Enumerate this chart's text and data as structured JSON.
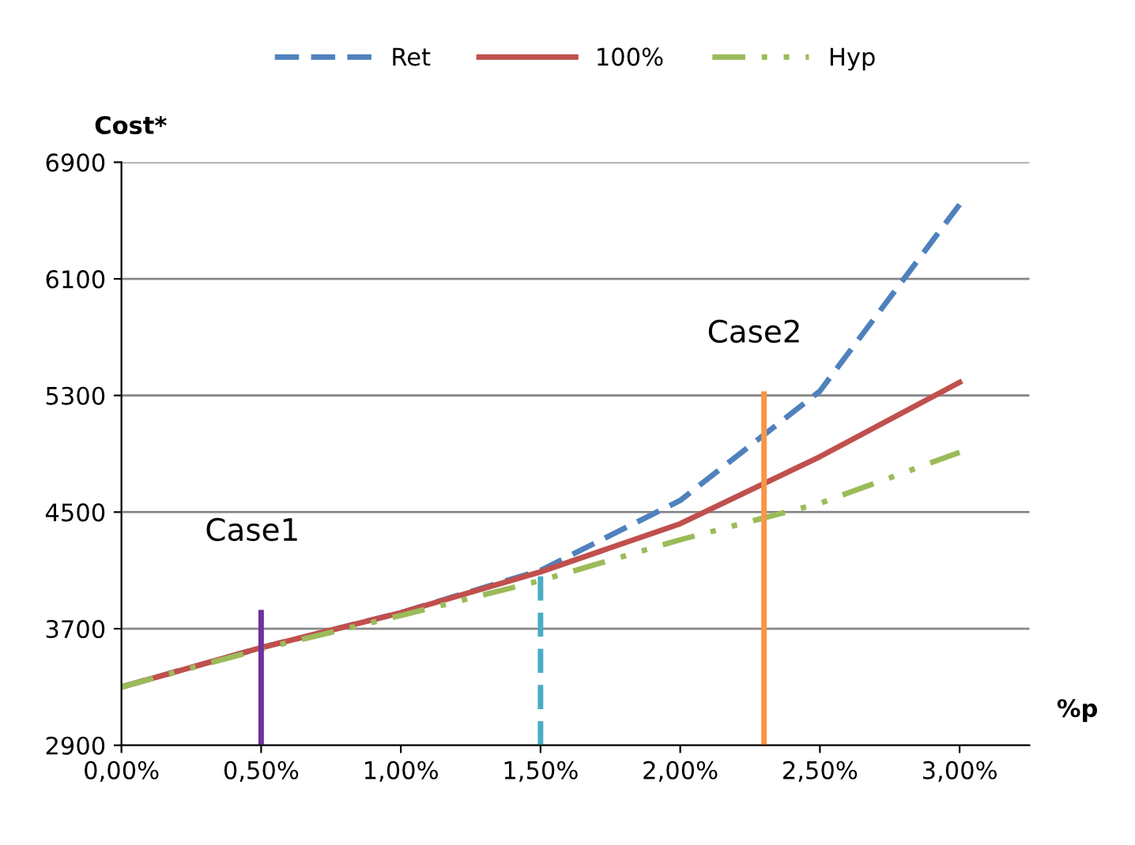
{
  "chart_data": {
    "type": "line",
    "ylabel": "Cost*",
    "xlabel": "%p",
    "x": [
      0,
      0.5,
      1.0,
      1.5,
      2.0,
      2.5,
      3.0
    ],
    "series": [
      {
        "name": "Ret",
        "color": "#4f81bd",
        "line_style": "dashed",
        "values": [
          3300,
          3570,
          3810,
          4100,
          4580,
          5330,
          6610
        ]
      },
      {
        "name": "100%",
        "color": "#c0504d",
        "line_style": "solid",
        "values": [
          3300,
          3570,
          3810,
          4090,
          4420,
          4880,
          5390
        ]
      },
      {
        "name": "Hyp",
        "color": "#9bbb59",
        "line_style": "dashdot",
        "values": [
          3300,
          3560,
          3790,
          4030,
          4310,
          4560,
          4910
        ]
      },
      {
        "color": "#7030a0",
        "line_style": "solid",
        "x": [
          0.5,
          0.5
        ],
        "values": [
          2900,
          3810
        ]
      },
      {
        "color": "#4bacc6",
        "line_style": "dashed",
        "x": [
          1.5,
          1.5
        ],
        "values": [
          2900,
          4110
        ]
      },
      {
        "color": "#f79646",
        "line_style": "solid",
        "x": [
          2.3,
          2.3
        ],
        "values": [
          2900,
          5310
        ]
      }
    ],
    "annotations": [
      "Case1",
      "Case2"
    ],
    "xlim": [
      0,
      3.25
    ],
    "xticks": [
      {
        "value": 0,
        "label": "0,00%"
      },
      {
        "value": 0.5,
        "label": "0,50%"
      },
      {
        "value": 1.0,
        "label": "1,00%"
      },
      {
        "value": 1.5,
        "label": "1,50%"
      },
      {
        "value": 2.0,
        "label": "2,00%"
      },
      {
        "value": 2.5,
        "label": "2,50%"
      },
      {
        "value": 3.0,
        "label": "3,00%"
      }
    ],
    "ylim": [
      2900,
      6900
    ],
    "yticks": [
      2900,
      3700,
      4500,
      5300,
      6100,
      6900
    ],
    "grid": "y",
    "legend": "top"
  }
}
